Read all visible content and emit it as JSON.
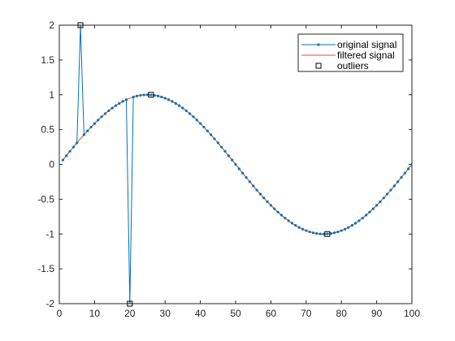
{
  "chart_data": {
    "type": "line",
    "xlim": [
      0,
      100
    ],
    "ylim": [
      -2,
      2
    ],
    "xticks": [
      0,
      10,
      20,
      30,
      40,
      50,
      60,
      70,
      80,
      90,
      100
    ],
    "yticks": [
      -2,
      -1.5,
      -1,
      -0.5,
      0,
      0.5,
      1,
      1.5,
      2
    ],
    "grid": false,
    "legend_position": "top-right",
    "signal": {
      "x_start": 1,
      "x_end": 100,
      "period": 100,
      "amplitude": 1
    },
    "series": [
      {
        "name": "original signal",
        "color": "#0072BD",
        "marker": "dot",
        "spikes": [
          {
            "x": 6,
            "y": 2
          },
          {
            "x": 20,
            "y": -2
          }
        ]
      },
      {
        "name": "filtered signal",
        "color": "#D95319",
        "marker": "none"
      },
      {
        "name": "outliers",
        "color": "#000000",
        "marker": "square",
        "points": [
          {
            "x": 6,
            "y": 2
          },
          {
            "x": 20,
            "y": -2
          },
          {
            "x": 26,
            "y": 1
          },
          {
            "x": 76,
            "y": -1
          }
        ]
      }
    ]
  }
}
